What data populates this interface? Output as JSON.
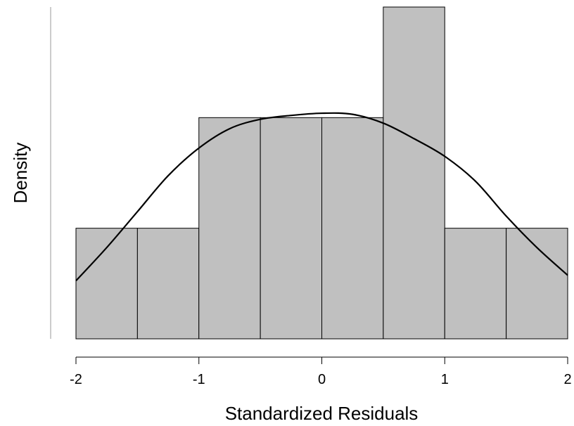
{
  "chart_data": {
    "type": "bar",
    "subtype": "histogram-with-density-curve",
    "xlabel": "Standardized Residuals",
    "ylabel": "Density",
    "xlim": [
      -2,
      2
    ],
    "x_ticks": [
      -2,
      -1,
      0,
      1,
      2
    ],
    "x_tick_labels": [
      "-2",
      "-1",
      "0",
      "1",
      "2"
    ],
    "y_tick_labels_shown": false,
    "bin_width": 0.5,
    "bins": [
      {
        "start": -2.0,
        "end": -1.5,
        "density": 0.2
      },
      {
        "start": -1.5,
        "end": -1.0,
        "density": 0.2
      },
      {
        "start": -1.0,
        "end": -0.5,
        "density": 0.4
      },
      {
        "start": -0.5,
        "end": 0.0,
        "density": 0.4
      },
      {
        "start": 0.0,
        "end": 0.5,
        "density": 0.4
      },
      {
        "start": 0.5,
        "end": 1.0,
        "density": 0.6
      },
      {
        "start": 1.0,
        "end": 1.5,
        "density": 0.2
      },
      {
        "start": 1.5,
        "end": 2.0,
        "density": 0.2
      }
    ],
    "density_curve": {
      "x": [
        -2.0,
        -1.75,
        -1.5,
        -1.25,
        -1.0,
        -0.75,
        -0.5,
        -0.25,
        0.0,
        0.25,
        0.5,
        0.75,
        1.0,
        1.25,
        1.5,
        1.75,
        2.0
      ],
      "y": [
        0.105,
        0.165,
        0.23,
        0.295,
        0.345,
        0.38,
        0.397,
        0.404,
        0.408,
        0.406,
        0.39,
        0.362,
        0.33,
        0.285,
        0.222,
        0.165,
        0.115
      ]
    },
    "ylim": [
      0,
      0.6
    ],
    "colors": {
      "bar_fill": "#c0c0c0",
      "bar_stroke": "#000000",
      "curve": "#000000"
    },
    "grid": false,
    "legend": "none"
  }
}
